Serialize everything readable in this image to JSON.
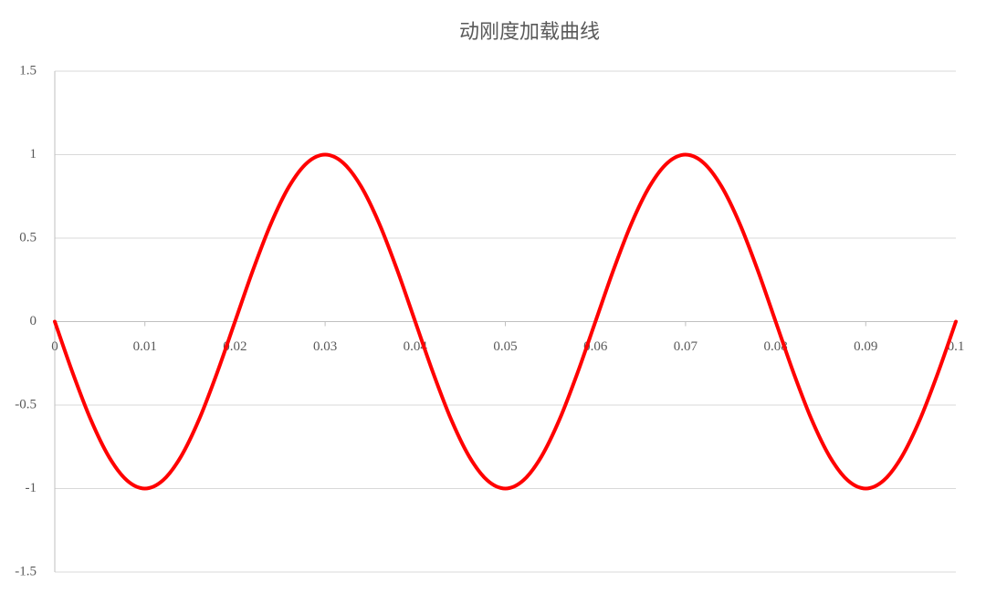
{
  "chart_data": {
    "type": "line",
    "title": "动刚度加载曲线",
    "x": [
      0,
      0.002,
      0.004,
      0.006,
      0.008,
      0.01,
      0.012,
      0.014,
      0.016,
      0.018,
      0.02,
      0.022,
      0.024,
      0.026,
      0.028,
      0.03,
      0.032,
      0.034,
      0.036,
      0.038,
      0.04,
      0.042,
      0.044,
      0.046,
      0.048,
      0.05,
      0.052,
      0.054,
      0.056,
      0.058,
      0.06,
      0.062,
      0.064,
      0.066,
      0.068,
      0.07,
      0.072,
      0.074,
      0.076,
      0.078,
      0.08,
      0.082,
      0.084,
      0.086,
      0.088,
      0.09,
      0.092,
      0.094,
      0.096,
      0.098,
      0.1
    ],
    "series": [
      {
        "color": "#ff0000",
        "values": [
          0,
          -0.309,
          -0.588,
          -0.809,
          -0.951,
          -1,
          -0.951,
          -0.809,
          -0.588,
          -0.309,
          0,
          0.309,
          0.588,
          0.809,
          0.951,
          1,
          0.951,
          0.809,
          0.588,
          0.309,
          0,
          -0.309,
          -0.588,
          -0.809,
          -0.951,
          -1,
          -0.951,
          -0.809,
          -0.588,
          -0.309,
          0,
          0.309,
          0.588,
          0.809,
          0.951,
          1,
          0.951,
          0.809,
          0.588,
          0.309,
          0,
          -0.309,
          -0.588,
          -0.809,
          -0.951,
          -1,
          -0.951,
          -0.809,
          -0.588,
          -0.309,
          0
        ]
      }
    ],
    "xlim": [
      0,
      0.1
    ],
    "xticks": [
      0,
      0.01,
      0.02,
      0.03,
      0.04,
      0.05,
      0.06,
      0.07,
      0.08,
      0.09,
      0.1
    ],
    "ylim": [
      -1.5,
      1.5
    ],
    "yticks": [
      -1.5,
      -1,
      -0.5,
      0,
      0.5,
      1,
      1.5
    ],
    "grid": true
  }
}
